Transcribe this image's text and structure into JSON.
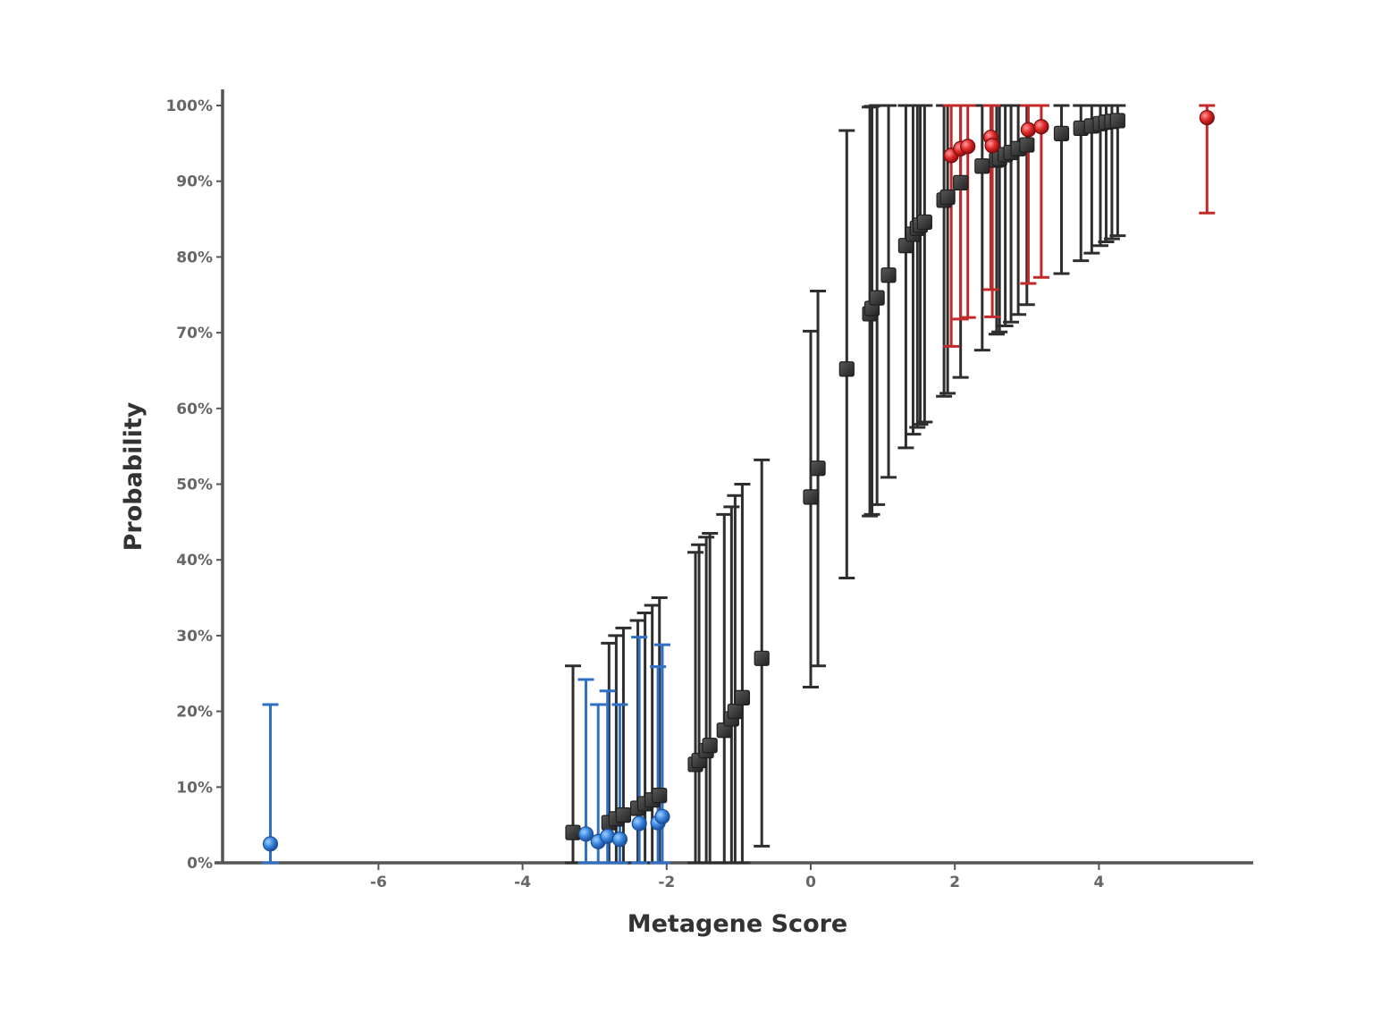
{
  "chart_data": {
    "type": "scatter",
    "title": "",
    "xlabel": "Metagene Score",
    "ylabel": "Probability",
    "xlim": [
      -8.3,
      6.2
    ],
    "ylim": [
      0,
      1
    ],
    "grid": false,
    "x_ticks": [
      -6,
      -4,
      -2,
      0,
      2,
      4
    ],
    "y_ticks": [
      0,
      0.1,
      0.2,
      0.3,
      0.4,
      0.5,
      0.6,
      0.7,
      0.8,
      0.9,
      1.0
    ],
    "y_tick_labels": [
      "0%",
      "10%",
      "20%",
      "30%",
      "40%",
      "50%",
      "60%",
      "70%",
      "80%",
      "90%",
      "100%"
    ],
    "colors": {
      "gray": "#333333",
      "blue": "#3a86e0",
      "red": "#e02828",
      "blue_bar": "#2f6fc4",
      "red_bar": "#c02a2a"
    },
    "series": [
      {
        "marker": "square",
        "color": "gray",
        "points": [
          {
            "x": -3.3,
            "y": 0.04,
            "lo": 0.0,
            "hi": 0.26
          },
          {
            "x": -2.8,
            "y": 0.053,
            "lo": 0.0,
            "hi": 0.29
          },
          {
            "x": -2.7,
            "y": 0.058,
            "lo": 0.0,
            "hi": 0.3
          },
          {
            "x": -2.6,
            "y": 0.063,
            "lo": 0.0,
            "hi": 0.31
          },
          {
            "x": -2.4,
            "y": 0.072,
            "lo": 0.0,
            "hi": 0.32
          },
          {
            "x": -2.3,
            "y": 0.078,
            "lo": 0.0,
            "hi": 0.33
          },
          {
            "x": -2.2,
            "y": 0.083,
            "lo": 0.0,
            "hi": 0.34
          },
          {
            "x": -2.1,
            "y": 0.089,
            "lo": 0.0,
            "hi": 0.35
          },
          {
            "x": -1.6,
            "y": 0.13,
            "lo": 0.0,
            "hi": 0.41
          },
          {
            "x": -1.55,
            "y": 0.135,
            "lo": 0.0,
            "hi": 0.42
          },
          {
            "x": -1.45,
            "y": 0.148,
            "lo": 0.0,
            "hi": 0.43
          },
          {
            "x": -1.4,
            "y": 0.155,
            "lo": 0.0,
            "hi": 0.435
          },
          {
            "x": -1.2,
            "y": 0.175,
            "lo": 0.0,
            "hi": 0.46
          },
          {
            "x": -1.1,
            "y": 0.19,
            "lo": 0.0,
            "hi": 0.47
          },
          {
            "x": -1.05,
            "y": 0.2,
            "lo": 0.0,
            "hi": 0.485
          },
          {
            "x": -0.95,
            "y": 0.218,
            "lo": 0.0,
            "hi": 0.5
          },
          {
            "x": -0.68,
            "y": 0.27,
            "lo": 0.022,
            "hi": 0.532
          },
          {
            "x": 0.0,
            "y": 0.483,
            "lo": 0.232,
            "hi": 0.702
          },
          {
            "x": 0.1,
            "y": 0.521,
            "lo": 0.26,
            "hi": 0.755
          },
          {
            "x": 0.5,
            "y": 0.652,
            "lo": 0.376,
            "hi": 0.967
          },
          {
            "x": 0.82,
            "y": 0.725,
            "lo": 0.458,
            "hi": 0.998
          },
          {
            "x": 0.85,
            "y": 0.732,
            "lo": 0.46,
            "hi": 0.999
          },
          {
            "x": 0.92,
            "y": 0.746,
            "lo": 0.473,
            "hi": 1.0
          },
          {
            "x": 1.08,
            "y": 0.776,
            "lo": 0.509,
            "hi": 1.0
          },
          {
            "x": 1.32,
            "y": 0.815,
            "lo": 0.548,
            "hi": 1.0
          },
          {
            "x": 1.42,
            "y": 0.83,
            "lo": 0.566,
            "hi": 1.0
          },
          {
            "x": 1.48,
            "y": 0.838,
            "lo": 0.575,
            "hi": 1.0
          },
          {
            "x": 1.52,
            "y": 0.842,
            "lo": 0.579,
            "hi": 1.0
          },
          {
            "x": 1.58,
            "y": 0.846,
            "lo": 0.582,
            "hi": 1.0
          },
          {
            "x": 1.85,
            "y": 0.875,
            "lo": 0.616,
            "hi": 1.0
          },
          {
            "x": 1.9,
            "y": 0.879,
            "lo": 0.62,
            "hi": 1.0
          },
          {
            "x": 2.08,
            "y": 0.898,
            "lo": 0.641,
            "hi": 1.0
          },
          {
            "x": 2.38,
            "y": 0.92,
            "lo": 0.677,
            "hi": 1.0
          },
          {
            "x": 2.58,
            "y": 0.928,
            "lo": 0.698,
            "hi": 1.0
          },
          {
            "x": 2.62,
            "y": 0.93,
            "lo": 0.701,
            "hi": 1.0
          },
          {
            "x": 2.7,
            "y": 0.935,
            "lo": 0.709,
            "hi": 1.0
          },
          {
            "x": 2.78,
            "y": 0.938,
            "lo": 0.714,
            "hi": 1.0
          },
          {
            "x": 2.88,
            "y": 0.943,
            "lo": 0.724,
            "hi": 1.0
          },
          {
            "x": 3.0,
            "y": 0.948,
            "lo": 0.737,
            "hi": 1.0
          },
          {
            "x": 3.48,
            "y": 0.963,
            "lo": 0.778,
            "hi": 1.0
          },
          {
            "x": 3.75,
            "y": 0.97,
            "lo": 0.795,
            "hi": 1.0
          },
          {
            "x": 3.9,
            "y": 0.973,
            "lo": 0.805,
            "hi": 1.0
          },
          {
            "x": 4.02,
            "y": 0.976,
            "lo": 0.815,
            "hi": 1.0
          },
          {
            "x": 4.1,
            "y": 0.978,
            "lo": 0.82,
            "hi": 1.0
          },
          {
            "x": 4.18,
            "y": 0.979,
            "lo": 0.824,
            "hi": 1.0
          },
          {
            "x": 4.26,
            "y": 0.98,
            "lo": 0.828,
            "hi": 1.0
          }
        ]
      },
      {
        "marker": "circle",
        "color": "blue",
        "points": [
          {
            "x": -7.5,
            "y": 0.025,
            "lo": 0.0,
            "hi": 0.209
          },
          {
            "x": -3.12,
            "y": 0.038,
            "lo": 0.0,
            "hi": 0.242
          },
          {
            "x": -2.95,
            "y": 0.028,
            "lo": 0.0,
            "hi": 0.209
          },
          {
            "x": -2.82,
            "y": 0.035,
            "lo": 0.0,
            "hi": 0.227
          },
          {
            "x": -2.65,
            "y": 0.031,
            "lo": 0.0,
            "hi": 0.209
          },
          {
            "x": -2.38,
            "y": 0.052,
            "lo": 0.0,
            "hi": 0.298
          },
          {
            "x": -2.12,
            "y": 0.053,
            "lo": 0.0,
            "hi": 0.259
          },
          {
            "x": -2.06,
            "y": 0.061,
            "lo": 0.0,
            "hi": 0.288
          }
        ]
      },
      {
        "marker": "circle",
        "color": "red",
        "points": [
          {
            "x": 1.95,
            "y": 0.934,
            "lo": 0.682,
            "hi": 1.0
          },
          {
            "x": 2.08,
            "y": 0.943,
            "lo": 0.718,
            "hi": 1.0
          },
          {
            "x": 2.18,
            "y": 0.946,
            "lo": 0.72,
            "hi": 1.0
          },
          {
            "x": 2.5,
            "y": 0.958,
            "lo": 0.757,
            "hi": 1.0
          },
          {
            "x": 2.52,
            "y": 0.947,
            "lo": 0.721,
            "hi": 1.0
          },
          {
            "x": 3.02,
            "y": 0.968,
            "lo": 0.765,
            "hi": 1.0
          },
          {
            "x": 3.2,
            "y": 0.972,
            "lo": 0.773,
            "hi": 1.0
          },
          {
            "x": 5.5,
            "y": 0.984,
            "lo": 0.858,
            "hi": 1.0
          }
        ]
      }
    ]
  }
}
